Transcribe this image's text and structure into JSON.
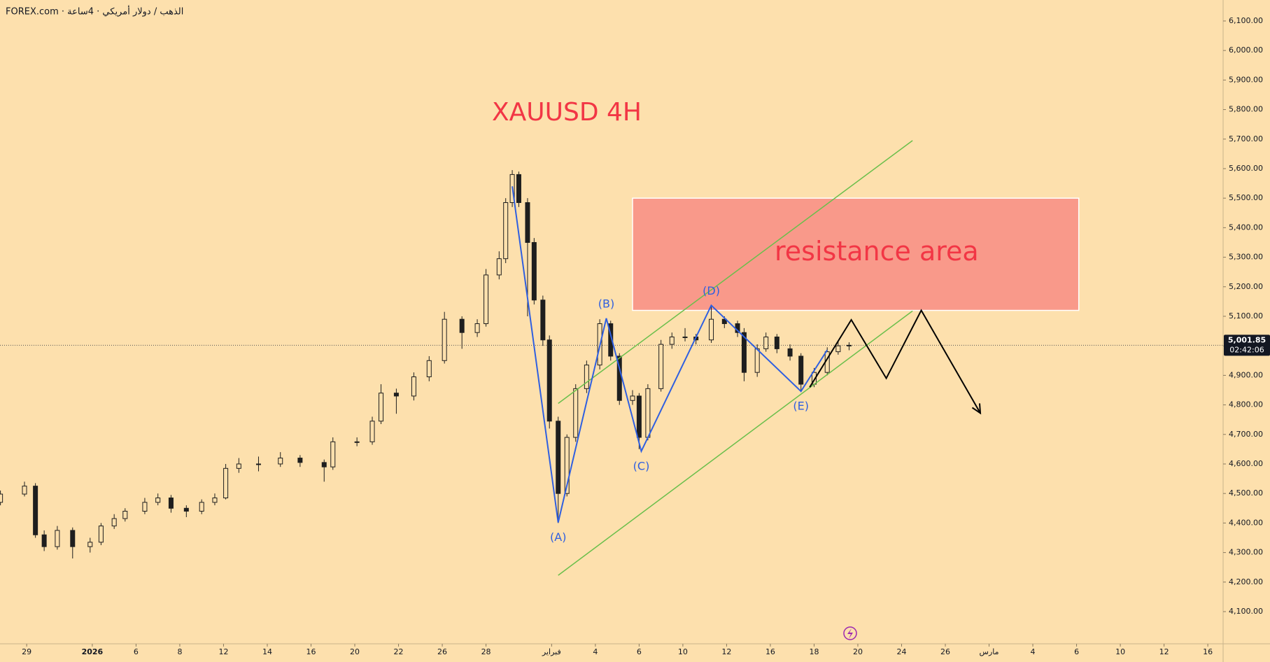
{
  "chart_data": {
    "type": "candlestick",
    "header": "FOREX.com · الذهب / دولار أمريكي · 4ساعة",
    "title": "XAUUSD 4H",
    "x": [
      -1.2,
      -0.1,
      0.4,
      0.8,
      1.4,
      2.1,
      2.9,
      3.4,
      4.0,
      4.5,
      5.4,
      6.0,
      6.6,
      7.3,
      8.0,
      8.6,
      9.1,
      9.7,
      10.6,
      11.6,
      12.5,
      13.6,
      14.0,
      15.1,
      15.8,
      16.2,
      16.9,
      17.7,
      18.4,
      19.1,
      19.9,
      20.6,
      21.0,
      21.6,
      21.9,
      22.2,
      22.5,
      22.9,
      23.2,
      23.6,
      23.9,
      24.3,
      24.7,
      25.1,
      25.6,
      26.2,
      26.7,
      27.1,
      27.7,
      28.0,
      28.4,
      29.0,
      29.5,
      30.1,
      30.6,
      31.3,
      31.9,
      32.5,
      32.8,
      33.4,
      33.8,
      34.3,
      34.9,
      35.4,
      36.0,
      36.6,
      37.1,
      37.6
    ],
    "open": [
      4470,
      4498,
      4525,
      4360,
      4320,
      4375,
      4320,
      4335,
      4390,
      4415,
      4440,
      4470,
      4485,
      4450,
      4440,
      4470,
      4485,
      4585,
      4600,
      4600,
      4620,
      4605,
      4590,
      4675,
      4675,
      4745,
      4840,
      4830,
      4895,
      4950,
      5090,
      5045,
      5075,
      5240,
      5295,
      5485,
      5580,
      5485,
      5350,
      5155,
      5020,
      4745,
      4500,
      4690,
      4855,
      4935,
      5075,
      4965,
      4815,
      4830,
      4690,
      4855,
      5005,
      5030,
      5030,
      5020,
      5090,
      5075,
      5045,
      4910,
      4990,
      5030,
      4990,
      4965,
      4870,
      4910,
      4980,
      5000
    ],
    "high": [
      4510,
      4540,
      4535,
      4375,
      4390,
      4385,
      4350,
      4400,
      4430,
      4450,
      4485,
      4500,
      4495,
      4460,
      4480,
      4500,
      4600,
      4620,
      4625,
      4640,
      4630,
      4615,
      4690,
      4690,
      4760,
      4870,
      4855,
      4910,
      4965,
      5115,
      5100,
      5090,
      5260,
      5320,
      5500,
      5595,
      5590,
      5500,
      5365,
      5170,
      5035,
      4760,
      4700,
      4870,
      4950,
      5090,
      5085,
      4975,
      4850,
      4840,
      4870,
      5020,
      5045,
      5060,
      5040,
      5135,
      5100,
      5085,
      5060,
      5005,
      5045,
      5040,
      5005,
      4975,
      4925,
      4995,
      5015,
      5012
    ],
    "low": [
      4460,
      4490,
      4350,
      4305,
      4310,
      4280,
      4300,
      4325,
      4380,
      4405,
      4430,
      4460,
      4435,
      4420,
      4430,
      4460,
      4480,
      4570,
      4575,
      4590,
      4590,
      4540,
      4580,
      4660,
      4665,
      4735,
      4770,
      4815,
      4880,
      4940,
      4990,
      5030,
      5065,
      5225,
      5280,
      5470,
      5470,
      5100,
      5140,
      5000,
      4720,
      4400,
      4490,
      4675,
      4840,
      4920,
      4950,
      4800,
      4800,
      4650,
      4680,
      4845,
      4990,
      5015,
      5005,
      5010,
      5060,
      5030,
      4880,
      4895,
      4980,
      4975,
      4950,
      4845,
      4860,
      4900,
      4970,
      4985
    ],
    "close": [
      4498,
      4525,
      4360,
      4320,
      4375,
      4320,
      4335,
      4390,
      4415,
      4440,
      4470,
      4485,
      4450,
      4440,
      4470,
      4485,
      4585,
      4600,
      4600,
      4620,
      4605,
      4590,
      4675,
      4675,
      4745,
      4840,
      4830,
      4895,
      4950,
      5090,
      5045,
      5075,
      5240,
      5295,
      5485,
      5580,
      5485,
      5350,
      5155,
      5020,
      4745,
      4500,
      4690,
      4855,
      4935,
      5075,
      4965,
      4815,
      4830,
      4690,
      4855,
      5005,
      5030,
      5030,
      5020,
      5090,
      5075,
      5045,
      4910,
      4990,
      5030,
      4990,
      4965,
      4870,
      4910,
      4980,
      5000,
      5001.85
    ],
    "colors": {
      "body": "#1e1e1e",
      "up_fill": "#fde0ad",
      "wave": "#2f5fe0",
      "channel": "#6abf4b",
      "projection": "#000000",
      "zone": "#f9998a",
      "zone_text": "#f23645",
      "title": "#f23645"
    },
    "xlim": [
      -1.22,
      54.7
    ],
    "ylim": [
      3991,
      6171
    ],
    "yticks": [
      {
        "value": 4100,
        "label": "4,100.00"
      },
      {
        "value": 4200,
        "label": "4,200.00"
      },
      {
        "value": 4300,
        "label": "4,300.00"
      },
      {
        "value": 4400,
        "label": "4,400.00"
      },
      {
        "value": 4500,
        "label": "4,500.00"
      },
      {
        "value": 4600,
        "label": "4,600.00"
      },
      {
        "value": 4700,
        "label": "4,700.00"
      },
      {
        "value": 4800,
        "label": "4,800.00"
      },
      {
        "value": 4900,
        "label": "4,900.00"
      },
      {
        "value": 5000,
        "label": "5,000.00"
      },
      {
        "value": 5100,
        "label": "5,100.00"
      },
      {
        "value": 5200,
        "label": "5,200.00"
      },
      {
        "value": 5300,
        "label": "5,300.00"
      },
      {
        "value": 5400,
        "label": "5,400.00"
      },
      {
        "value": 5500,
        "label": "5,500.00"
      },
      {
        "value": 5600,
        "label": "5,600.00"
      },
      {
        "value": 5700,
        "label": "5,700.00"
      },
      {
        "value": 5800,
        "label": "5,800.00"
      },
      {
        "value": 5900,
        "label": "5,900.00"
      },
      {
        "value": 6000,
        "label": "6,000.00"
      },
      {
        "value": 6100,
        "label": "6,100.00"
      }
    ],
    "xticks": [
      {
        "value": 0,
        "label": "29"
      },
      {
        "value": 3,
        "label": "2026"
      },
      {
        "value": 5,
        "label": "6"
      },
      {
        "value": 7,
        "label": "8"
      },
      {
        "value": 9,
        "label": "12"
      },
      {
        "value": 11,
        "label": "14"
      },
      {
        "value": 13,
        "label": "16"
      },
      {
        "value": 15,
        "label": "20"
      },
      {
        "value": 17,
        "label": "22"
      },
      {
        "value": 19,
        "label": "26"
      },
      {
        "value": 21,
        "label": "28"
      },
      {
        "value": 24,
        "label": "فبراير"
      },
      {
        "value": 26,
        "label": "4"
      },
      {
        "value": 28,
        "label": "6"
      },
      {
        "value": 30,
        "label": "10"
      },
      {
        "value": 32,
        "label": "12"
      },
      {
        "value": 34,
        "label": "16"
      },
      {
        "value": 36,
        "label": "18"
      },
      {
        "value": 38,
        "label": "20"
      },
      {
        "value": 40,
        "label": "24"
      },
      {
        "value": 42,
        "label": "26"
      },
      {
        "value": 44,
        "label": "مارس"
      },
      {
        "value": 46,
        "label": "4"
      },
      {
        "value": 48,
        "label": "6"
      },
      {
        "value": 50,
        "label": "10"
      },
      {
        "value": 52,
        "label": "12"
      },
      {
        "value": 54,
        "label": "16"
      }
    ],
    "last_price": {
      "value": 5001.85,
      "label": "5,001.85"
    },
    "countdown": "02:42:06",
    "zone": {
      "label": "resistance area",
      "x": [
        27.7,
        48.1
      ],
      "y": [
        5120,
        5500
      ]
    },
    "channel": [
      {
        "x": [
          24.3,
          40.5
        ],
        "y": [
          4805,
          5695
        ]
      },
      {
        "x": [
          24.3,
          40.5
        ],
        "y": [
          4223,
          5118
        ]
      }
    ],
    "wave": {
      "x": [
        22.2,
        24.3,
        26.5,
        28.1,
        31.3,
        35.4,
        36.6
      ],
      "y": [
        5540,
        4402,
        5093,
        4643,
        5137,
        4846,
        4986
      ],
      "labels": [
        null,
        "(A)",
        "(B)",
        "(C)",
        "(D)",
        "(E)",
        null
      ]
    },
    "projection": {
      "x": [
        35.8,
        37.7,
        39.3,
        40.9,
        43.6
      ],
      "y": [
        4860,
        5088,
        4890,
        5120,
        4772
      ]
    }
  }
}
